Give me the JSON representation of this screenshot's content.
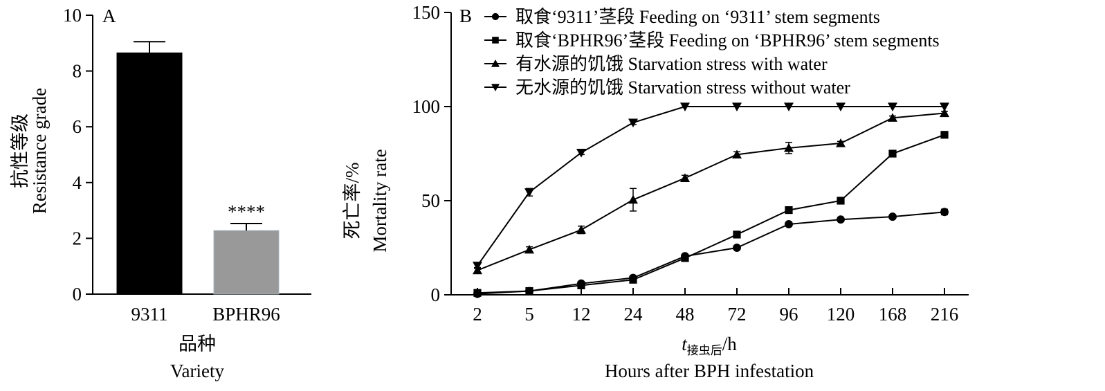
{
  "chart_data": [
    {
      "type": "bar",
      "panel_label": "A",
      "categories": [
        "9311",
        "BPHR96"
      ],
      "values": [
        8.65,
        2.28
      ],
      "errors": [
        0.4,
        0.25
      ],
      "colors": [
        "#000000",
        "#999999"
      ],
      "annotations": [
        null,
        "****"
      ],
      "title": "",
      "xlabel": [
        "品种",
        "Variety"
      ],
      "ylabel": [
        "抗性等级",
        "Resistance grade"
      ],
      "ylim": [
        0,
        10
      ],
      "yticks": [
        0,
        2,
        4,
        6,
        8,
        10
      ],
      "grid": false
    },
    {
      "type": "line",
      "panel_label": "B",
      "categories": [
        "2",
        "5",
        "12",
        "24",
        "48",
        "72",
        "96",
        "120",
        "168",
        "216"
      ],
      "series": [
        {
          "name": "取食‘9311’茎段 Feeding on ‘9311’ stem segments",
          "marker": "circle",
          "values": [
            0.5,
            2,
            6,
            9,
            20.5,
            25,
            37.5,
            40,
            41.5,
            44
          ],
          "errors": [
            0.5,
            0.5,
            1,
            1,
            1,
            1,
            1,
            1,
            1,
            1.5
          ]
        },
        {
          "name": "取食‘BPHR96’茎段  Feeding on ‘BPHR96’ stem segments",
          "marker": "square",
          "values": [
            1,
            2,
            5,
            8,
            19.5,
            32,
            45,
            50,
            75,
            85
          ],
          "errors": [
            0.5,
            0.5,
            1,
            1,
            1,
            1,
            1,
            1,
            1,
            1
          ]
        },
        {
          "name": "有水源的饥饿 Starvation stress with water",
          "marker": "triangle-up",
          "values": [
            13,
            24,
            34.5,
            50.5,
            62,
            74.5,
            78,
            80.5,
            94,
            96.5
          ],
          "errors": [
            1,
            1.5,
            2,
            6,
            1.5,
            1.5,
            3,
            1,
            1,
            1
          ]
        },
        {
          "name": "无水源的饥饿 Starvation stress without water",
          "marker": "triangle-down",
          "values": [
            15.5,
            54.5,
            75.5,
            91.5,
            100,
            100,
            100,
            100,
            100,
            100
          ],
          "errors": [
            1,
            2,
            1,
            1,
            0,
            0,
            0,
            0,
            0,
            0
          ]
        }
      ],
      "title": "",
      "xlabel": {
        "var": "t",
        "sub": "接虫后",
        "unit": "/h",
        "en": "Hours after BPH infestation"
      },
      "ylabel": [
        "死亡率/%",
        "Mortality rate"
      ],
      "ylim": [
        0,
        150
      ],
      "yticks": [
        0,
        50,
        100,
        150
      ],
      "legend": "top",
      "grid": false
    }
  ]
}
